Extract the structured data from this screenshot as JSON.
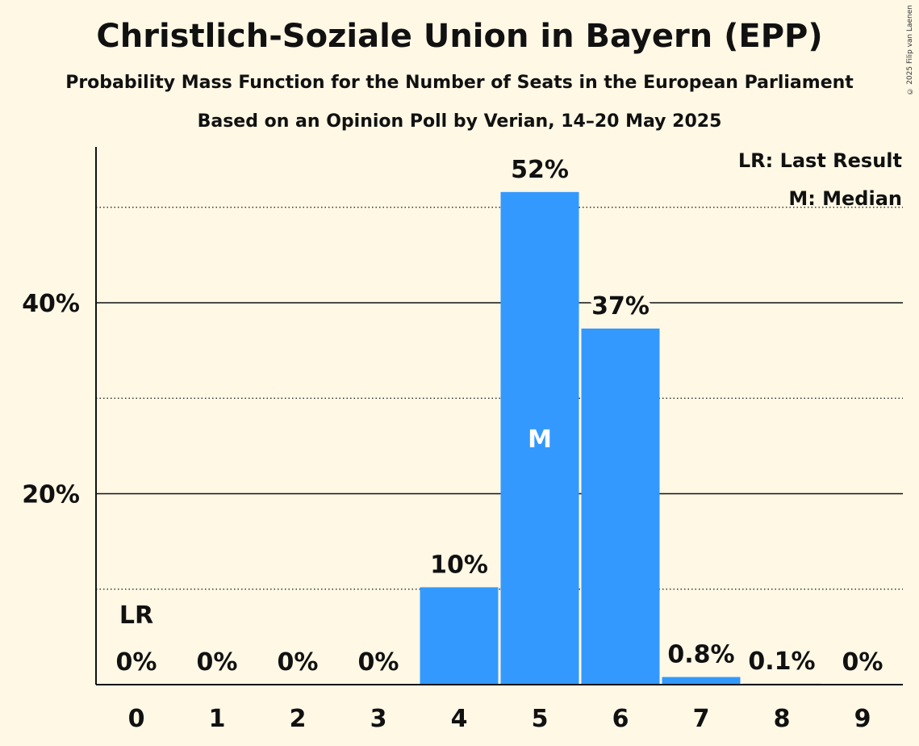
{
  "copyright": "© 2025 Filip van Laenen",
  "chart_data": {
    "type": "bar",
    "title": "Christlich-Soziale Union in Bayern (EPP)",
    "subtitle": "Probability Mass Function for the Number of Seats in the European Parliament",
    "subtitle2": "Based on an Opinion Poll by Verian, 14–20 May 2025",
    "xlabel": "",
    "ylabel": "",
    "categories": [
      "0",
      "1",
      "2",
      "3",
      "4",
      "5",
      "6",
      "7",
      "8",
      "9"
    ],
    "values": [
      0,
      0,
      0,
      0,
      10.2,
      51.6,
      37.3,
      0.8,
      0.1,
      0
    ],
    "value_labels": [
      "0%",
      "0%",
      "0%",
      "0%",
      "10%",
      "52%",
      "37%",
      "0.8%",
      "0.1%",
      "0%"
    ],
    "ylim": [
      0,
      56.3
    ],
    "y_ticks": [
      20,
      40
    ],
    "y_tick_labels": [
      "20%",
      "40%"
    ],
    "y_minor_gridlines": [
      10,
      30,
      50
    ],
    "last_result_index": 0,
    "last_result_label": "LR",
    "median_index": 5,
    "median_label": "M",
    "legend": [
      "LR: Last Result",
      "M: Median"
    ],
    "legend_position": "top-right",
    "colors": {
      "bar": "#3399ff",
      "background": "#fff8e5",
      "text": "#111111"
    }
  }
}
